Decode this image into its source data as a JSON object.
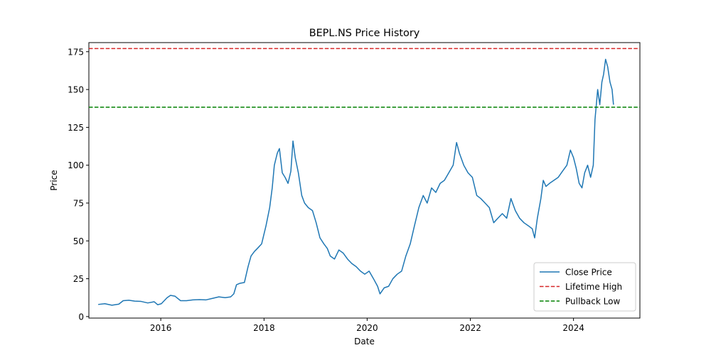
{
  "chart_data": {
    "type": "line",
    "title": "BEPL.NS Price History",
    "xlabel": "Date",
    "ylabel": "Price",
    "xlim": [
      "2014-08-10",
      "2025-04-15"
    ],
    "ylim": [
      -1,
      181
    ],
    "x_ticks": [
      "2016",
      "2018",
      "2020",
      "2022",
      "2024"
    ],
    "y_ticks": [
      0,
      25,
      50,
      75,
      100,
      125,
      150,
      175
    ],
    "grid": false,
    "legend_position": "lower right",
    "series": [
      {
        "name": "Close Price",
        "color": "#1f77b4",
        "style": "solid",
        "points": [
          [
            "2014-10-15",
            8.0
          ],
          [
            "2014-12-01",
            8.5
          ],
          [
            "2015-01-20",
            7.5
          ],
          [
            "2015-03-10",
            8.2
          ],
          [
            "2015-04-10",
            10.5
          ],
          [
            "2015-05-20",
            10.8
          ],
          [
            "2015-07-01",
            10.2
          ],
          [
            "2015-08-15",
            10.0
          ],
          [
            "2015-10-01",
            9.0
          ],
          [
            "2015-11-15",
            9.8
          ],
          [
            "2015-12-10",
            7.8
          ],
          [
            "2016-01-05",
            8.5
          ],
          [
            "2016-02-15",
            12.5
          ],
          [
            "2016-03-10",
            14.0
          ],
          [
            "2016-04-10",
            13.5
          ],
          [
            "2016-05-20",
            10.5
          ],
          [
            "2016-07-01",
            10.5
          ],
          [
            "2016-08-15",
            11.0
          ],
          [
            "2016-10-01",
            11.2
          ],
          [
            "2016-11-15",
            11.0
          ],
          [
            "2017-01-01",
            12.0
          ],
          [
            "2017-02-15",
            13.0
          ],
          [
            "2017-04-01",
            12.5
          ],
          [
            "2017-05-10",
            13.0
          ],
          [
            "2017-06-01",
            15.0
          ],
          [
            "2017-06-20",
            21.0
          ],
          [
            "2017-07-15",
            22.0
          ],
          [
            "2017-08-15",
            22.5
          ],
          [
            "2017-09-10",
            33.0
          ],
          [
            "2017-10-01",
            40.0
          ],
          [
            "2017-10-25",
            43.0
          ],
          [
            "2017-11-15",
            45.0
          ],
          [
            "2017-12-15",
            48.0
          ],
          [
            "2018-01-15",
            60.0
          ],
          [
            "2018-02-10",
            72.0
          ],
          [
            "2018-02-28",
            85.0
          ],
          [
            "2018-03-15",
            100.0
          ],
          [
            "2018-04-05",
            108.0
          ],
          [
            "2018-04-20",
            111.0
          ],
          [
            "2018-05-10",
            95.0
          ],
          [
            "2018-05-30",
            92.0
          ],
          [
            "2018-06-20",
            88.0
          ],
          [
            "2018-07-10",
            96.0
          ],
          [
            "2018-07-25",
            116.0
          ],
          [
            "2018-08-10",
            105.0
          ],
          [
            "2018-09-01",
            95.0
          ],
          [
            "2018-09-25",
            80.0
          ],
          [
            "2018-10-15",
            75.0
          ],
          [
            "2018-11-10",
            72.0
          ],
          [
            "2018-12-10",
            70.0
          ],
          [
            "2019-01-05",
            62.0
          ],
          [
            "2019-02-01",
            52.0
          ],
          [
            "2019-03-01",
            48.0
          ],
          [
            "2019-03-25",
            45.0
          ],
          [
            "2019-04-15",
            40.0
          ],
          [
            "2019-05-15",
            38.0
          ],
          [
            "2019-06-15",
            44.0
          ],
          [
            "2019-07-15",
            42.0
          ],
          [
            "2019-08-15",
            38.0
          ],
          [
            "2019-09-15",
            35.0
          ],
          [
            "2019-10-15",
            33.0
          ],
          [
            "2019-11-15",
            30.0
          ],
          [
            "2019-12-15",
            28.0
          ],
          [
            "2020-01-15",
            30.0
          ],
          [
            "2020-02-15",
            25.0
          ],
          [
            "2020-03-15",
            20.0
          ],
          [
            "2020-04-01",
            15.0
          ],
          [
            "2020-05-01",
            19.0
          ],
          [
            "2020-06-01",
            20.0
          ],
          [
            "2020-07-01",
            25.0
          ],
          [
            "2020-08-01",
            28.0
          ],
          [
            "2020-09-01",
            30.0
          ],
          [
            "2020-10-01",
            40.0
          ],
          [
            "2020-11-01",
            48.0
          ],
          [
            "2020-12-01",
            60.0
          ],
          [
            "2021-01-01",
            72.0
          ],
          [
            "2021-02-01",
            80.0
          ],
          [
            "2021-03-01",
            75.0
          ],
          [
            "2021-04-01",
            85.0
          ],
          [
            "2021-05-01",
            82.0
          ],
          [
            "2021-06-01",
            88.0
          ],
          [
            "2021-07-01",
            90.0
          ],
          [
            "2021-08-01",
            95.0
          ],
          [
            "2021-09-01",
            100.0
          ],
          [
            "2021-09-25",
            115.0
          ],
          [
            "2021-10-15",
            108.0
          ],
          [
            "2021-11-15",
            100.0
          ],
          [
            "2021-12-15",
            95.0
          ],
          [
            "2022-01-15",
            92.0
          ],
          [
            "2022-02-15",
            80.0
          ],
          [
            "2022-03-15",
            78.0
          ],
          [
            "2022-04-15",
            75.0
          ],
          [
            "2022-05-15",
            72.0
          ],
          [
            "2022-06-15",
            62.0
          ],
          [
            "2022-07-15",
            65.0
          ],
          [
            "2022-08-15",
            68.0
          ],
          [
            "2022-09-15",
            65.0
          ],
          [
            "2022-10-15",
            78.0
          ],
          [
            "2022-11-15",
            70.0
          ],
          [
            "2022-12-15",
            65.0
          ],
          [
            "2023-01-15",
            62.0
          ],
          [
            "2023-02-15",
            60.0
          ],
          [
            "2023-03-15",
            58.0
          ],
          [
            "2023-04-01",
            52.0
          ],
          [
            "2023-04-20",
            65.0
          ],
          [
            "2023-05-15",
            78.0
          ],
          [
            "2023-06-01",
            90.0
          ],
          [
            "2023-06-20",
            86.0
          ],
          [
            "2023-07-15",
            88.0
          ],
          [
            "2023-08-15",
            90.0
          ],
          [
            "2023-09-15",
            92.0
          ],
          [
            "2023-10-15",
            96.0
          ],
          [
            "2023-11-15",
            100.0
          ],
          [
            "2023-12-10",
            110.0
          ],
          [
            "2024-01-01",
            105.0
          ],
          [
            "2024-01-20",
            98.0
          ],
          [
            "2024-02-10",
            88.0
          ],
          [
            "2024-03-01",
            85.0
          ],
          [
            "2024-03-20",
            95.0
          ],
          [
            "2024-04-10",
            100.0
          ],
          [
            "2024-05-01",
            92.0
          ],
          [
            "2024-05-20",
            100.0
          ],
          [
            "2024-06-01",
            130.0
          ],
          [
            "2024-06-20",
            150.0
          ],
          [
            "2024-07-05",
            140.0
          ],
          [
            "2024-07-20",
            155.0
          ],
          [
            "2024-08-01",
            160.0
          ],
          [
            "2024-08-15",
            170.0
          ],
          [
            "2024-08-30",
            165.0
          ],
          [
            "2024-09-15",
            155.0
          ],
          [
            "2024-09-30",
            150.0
          ],
          [
            "2024-10-10",
            140.0
          ]
        ]
      },
      {
        "name": "Lifetime High",
        "color": "#d62728",
        "style": "dashed",
        "value": 177.1
      },
      {
        "name": "Pullback Low",
        "color": "#008000",
        "style": "dashed",
        "value": 138.3
      }
    ]
  }
}
